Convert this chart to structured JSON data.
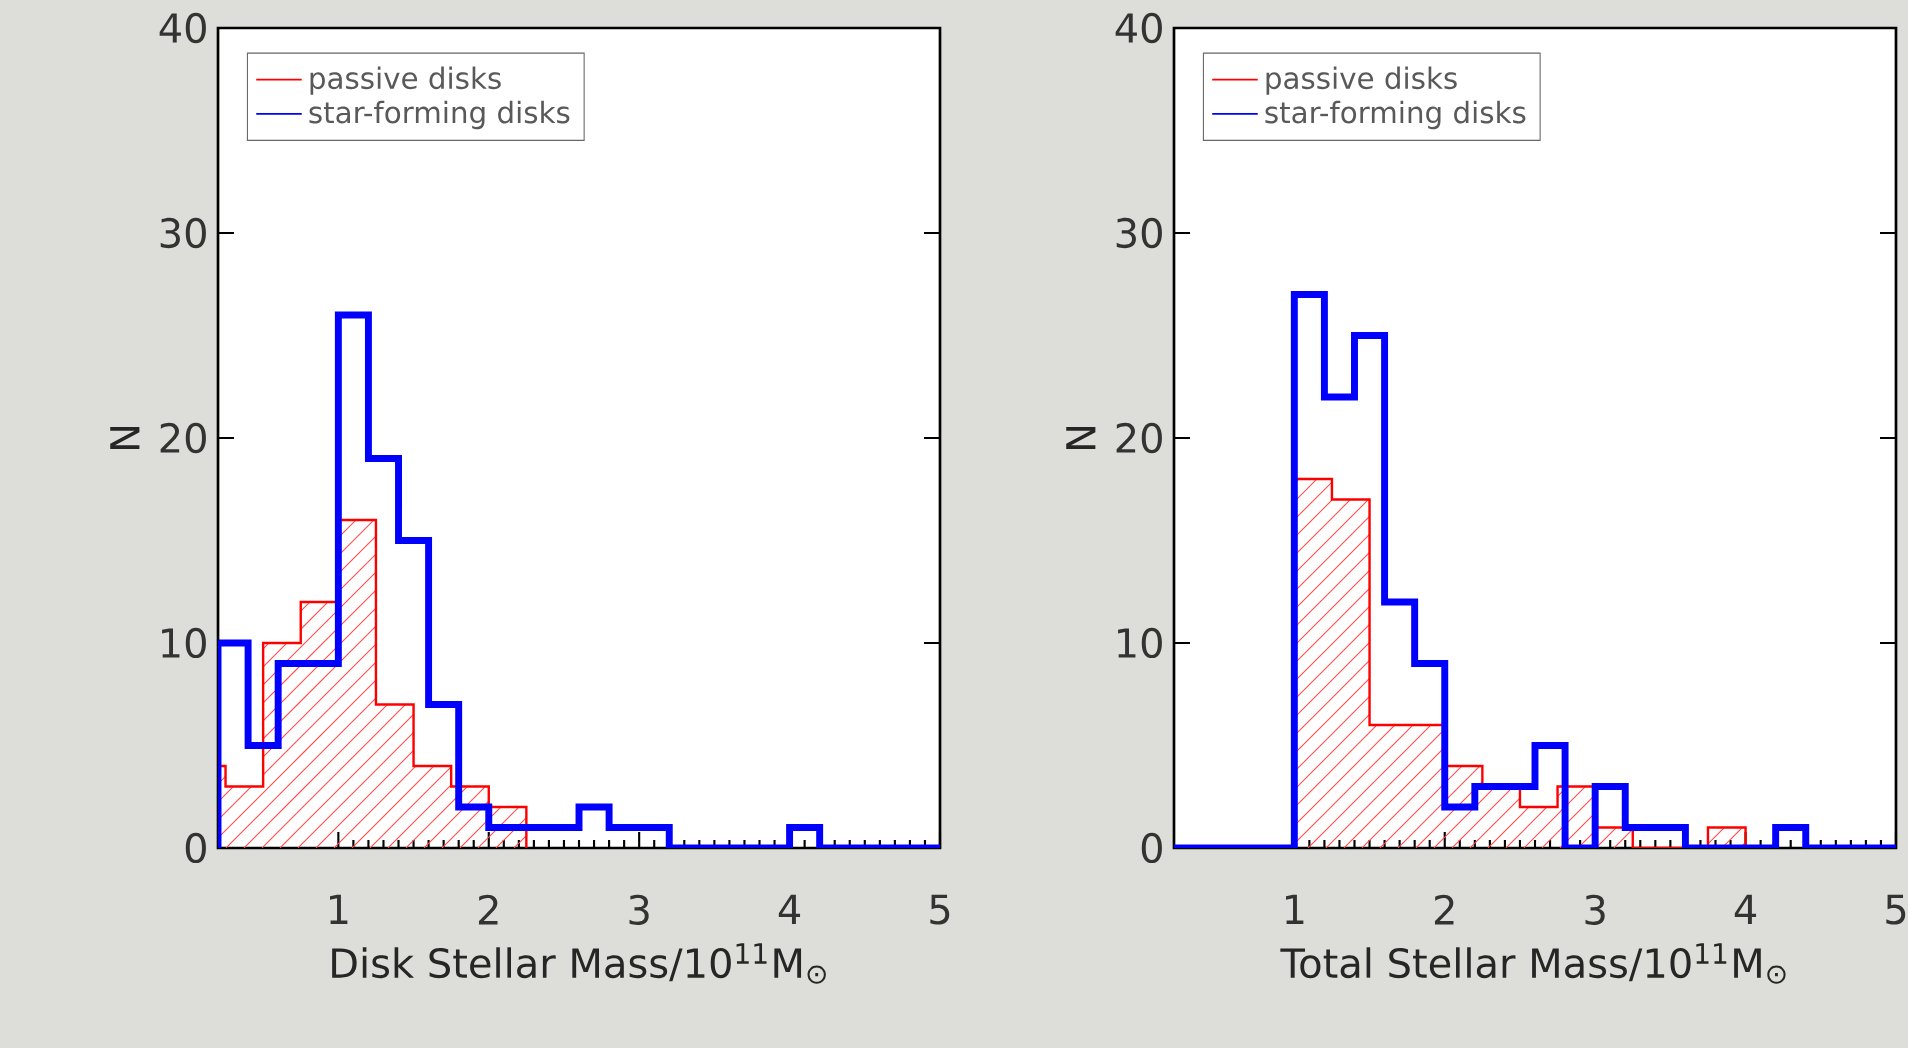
{
  "chart_data": [
    {
      "type": "histogram",
      "xlabel": "Disk Stellar Mass/10$^{11}$M$_{⊙}$",
      "ylabel": "N",
      "xlim": [
        0.2,
        5
      ],
      "ylim": [
        0,
        40
      ],
      "xticks": [
        1,
        2,
        3,
        4,
        5
      ],
      "yticks": [
        0,
        10,
        20,
        30,
        40
      ],
      "legend": "top left",
      "bins": [
        0.2,
        0.4,
        0.6,
        0.8,
        1.0,
        1.2,
        1.4,
        1.6,
        1.8,
        2.0,
        2.2,
        2.4,
        2.6,
        2.8,
        3.0,
        3.2,
        3.4,
        3.6,
        3.8,
        4.0,
        4.2,
        4.4,
        4.6,
        4.8,
        5.0
      ],
      "series": [
        {
          "name": "passive disks",
          "color": "#ff0000",
          "bins": [
            0.2,
            0.25,
            0.5,
            0.75,
            1.0,
            1.25,
            1.5,
            1.75,
            2.0,
            2.25
          ],
          "values": [
            4,
            3,
            10,
            12,
            16,
            7,
            4,
            3,
            2
          ]
        },
        {
          "name": "star-forming disks",
          "color": "#0000ff",
          "values": [
            10,
            5,
            9,
            9,
            26,
            19,
            15,
            7,
            2,
            1,
            1,
            1,
            2,
            1,
            1,
            0,
            0,
            0,
            0,
            1,
            0,
            0,
            0,
            0
          ]
        }
      ]
    },
    {
      "type": "histogram",
      "xlabel": "Total Stellar Mass/10$^{11}$M$_{⊙}$",
      "ylabel": "N",
      "xlim": [
        0.2,
        5
      ],
      "ylim": [
        0,
        40
      ],
      "xticks": [
        1,
        2,
        3,
        4,
        5
      ],
      "yticks": [
        0,
        10,
        20,
        30,
        40
      ],
      "legend": "top left",
      "bins": [
        0.2,
        0.4,
        0.6,
        0.8,
        1.0,
        1.2,
        1.4,
        1.6,
        1.8,
        2.0,
        2.2,
        2.4,
        2.6,
        2.8,
        3.0,
        3.2,
        3.4,
        3.6,
        3.8,
        4.0,
        4.2,
        4.4,
        4.6,
        4.8,
        5.0
      ],
      "series": [
        {
          "name": "passive disks",
          "color": "#ff0000",
          "bins": [
            1.0,
            1.25,
            1.5,
            1.75,
            2.0,
            2.25,
            2.5,
            2.75,
            3.0,
            3.25,
            3.5,
            3.75,
            4.0
          ],
          "values": [
            18,
            17,
            6,
            6,
            4,
            3,
            2,
            3,
            1,
            0,
            0,
            1
          ]
        },
        {
          "name": "star-forming disks",
          "color": "#0000ff",
          "values": [
            0,
            0,
            0,
            0,
            27,
            22,
            25,
            12,
            9,
            2,
            3,
            3,
            5,
            0,
            3,
            1,
            1,
            0,
            0,
            0,
            1,
            0,
            0,
            0
          ]
        }
      ]
    }
  ]
}
